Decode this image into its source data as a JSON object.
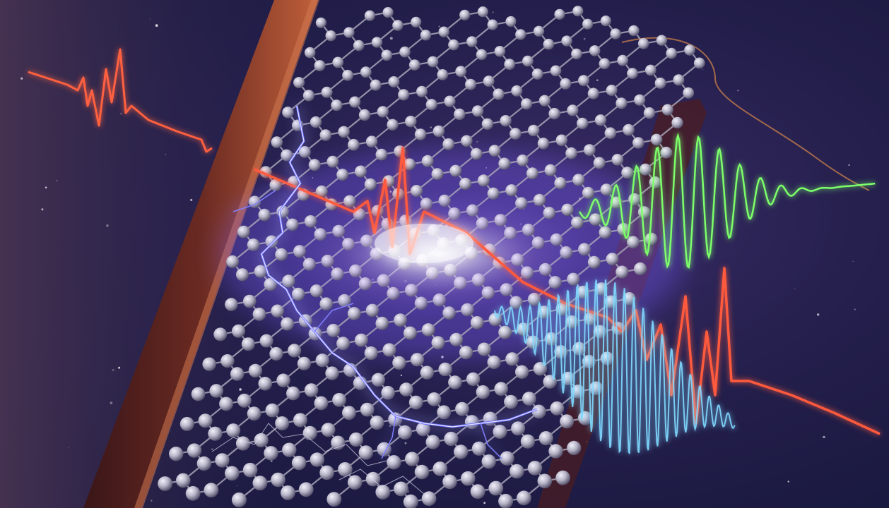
{
  "scene": {
    "kind": "illustration",
    "subject": "graphene-lattice-with-light-pulses",
    "colors": {
      "background_dark": "#14163a",
      "background_mid": "#2c2550",
      "background_warm": "#4a3452",
      "frame": "#5a2420",
      "frame_edge": "#c0603a",
      "atom": "#c6c4d2",
      "atom_shadow": "#5a5670",
      "bond": "#a8a6b8",
      "pulse_red": "#ff5a3c",
      "pulse_orange": "#ff9a5a",
      "pulse_green": "#7dff6a",
      "pulse_blue": "#7fd8ff",
      "lightning": "#6a6cff",
      "lightning_core": "#e8e8ff",
      "glow_white": "#ffffff",
      "fiber_copper": "#c07a4a"
    }
  }
}
